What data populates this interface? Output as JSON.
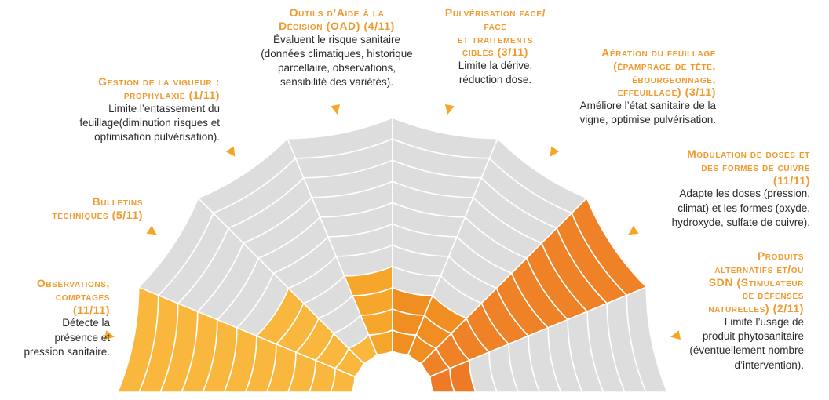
{
  "colors": {
    "background": "#ffffff",
    "empty_cell": "#dddddd",
    "grid_line": "#ffffff",
    "label_title": "#ef9a2e",
    "arrow": "#f5a623"
  },
  "chart_data": {
    "type": "radial_bar",
    "title": "",
    "max_value": 11,
    "sectors": [
      {
        "title": "Observations, comptages (11/11)",
        "value": 11,
        "total": 11,
        "color": "#f9b83d",
        "description": "Détecte la présence et pression sanitaire."
      },
      {
        "title": "Bulletins techniques (5/11)",
        "value": 5,
        "total": 11,
        "color": "#f9b83d",
        "description": ""
      },
      {
        "title": "Gestion de la vigueur : prophylaxie (1/11)",
        "value": 1,
        "total": 11,
        "color": "#f9b83d",
        "description": "Limite l’entassement du feuillage(diminution risques et optimisation pulvérisation)."
      },
      {
        "title": "Outils d’Aide à la Décision (OAD) (4/11)",
        "value": 4,
        "total": 11,
        "color": "#f7a62c",
        "description": "Évaluent le risque sanitaire (données climatiques, historique parcellaire, observations, sensibilité des variétés)."
      },
      {
        "title": "Pulvérisation face/ face et traitements ciblés (3/11)",
        "value": 3,
        "total": 11,
        "color": "#f08e22",
        "description": "Limite la dérive, réduction dose."
      },
      {
        "title": "Aération du feuillage (épamprage de tête, ébourgeonnage, effeuillage) (3/11)",
        "value": 3,
        "total": 11,
        "color": "#f08e22",
        "description": "Améliore l’état sanitaire de la vigne, optimise pulvérisation."
      },
      {
        "title": "Modulation de doses et des formes de cuivre (11/11)",
        "value": 11,
        "total": 11,
        "color": "#ef8227",
        "description": "Adapte les doses (pression, climat) et les formes (oxyde, hydroxyde, sulfate de cuivre)."
      },
      {
        "title": "Produits alternatifs et/ou SDN (Stimulateur de défenses naturelles) (2/11)",
        "value": 2,
        "total": 11,
        "color": "#ee7a26",
        "description": "Limite l’usage de produit phytosanitaire (éventuellement nombre d’intervention)."
      }
    ]
  },
  "labels": [
    {
      "title_lines": [
        "Observations,",
        "comptages",
        "(11/11)"
      ],
      "desc_lines": [
        "Détecte la",
        "présence et",
        "pression sanitaire."
      ]
    },
    {
      "title_lines": [
        "Bulletins",
        "techniques (5/11)"
      ],
      "desc_lines": []
    },
    {
      "title_lines": [
        "Gestion de la vigueur :",
        "prophylaxie (1/11)"
      ],
      "desc_lines": [
        "Limite l’entassement du",
        "feuillage(diminution risques et",
        "optimisation pulvérisation)."
      ]
    },
    {
      "title_lines": [
        "Outils d’Aide à la",
        "Décision (OAD) (4/11)"
      ],
      "desc_lines": [
        "Évaluent le risque sanitaire",
        "(données climatiques, historique",
        "parcellaire, observations,",
        "sensibilité des variétés)."
      ]
    },
    {
      "title_lines": [
        "Pulvérisation face/",
        "face",
        "et traitements",
        "ciblés (3/11)"
      ],
      "desc_lines": [
        "Limite la dérive,",
        "réduction dose."
      ]
    },
    {
      "title_lines": [
        "Aération du feuillage",
        "(épamprage de tête,",
        "ébourgeonnage,",
        "effeuillage) (3/11)"
      ],
      "desc_lines": [
        "Améliore l’état sanitaire de la",
        "vigne, optimise pulvérisation."
      ]
    },
    {
      "title_lines": [
        "Modulation de doses et",
        "des formes de cuivre",
        "(11/11)"
      ],
      "desc_lines": [
        "Adapte les doses (pression,",
        "climat) et les formes (oxyde,",
        "hydroxyde, sulfate de cuivre)."
      ]
    },
    {
      "title_lines": [
        "Produits",
        "alternatifs et/ou",
        "SDN (Stimulateur",
        "de défenses",
        "naturelles) (2/11)"
      ],
      "desc_lines": [
        "Limite l’usage de",
        "produit phytosanitaire",
        "(éventuellement nombre",
        "d’intervention)."
      ]
    }
  ]
}
